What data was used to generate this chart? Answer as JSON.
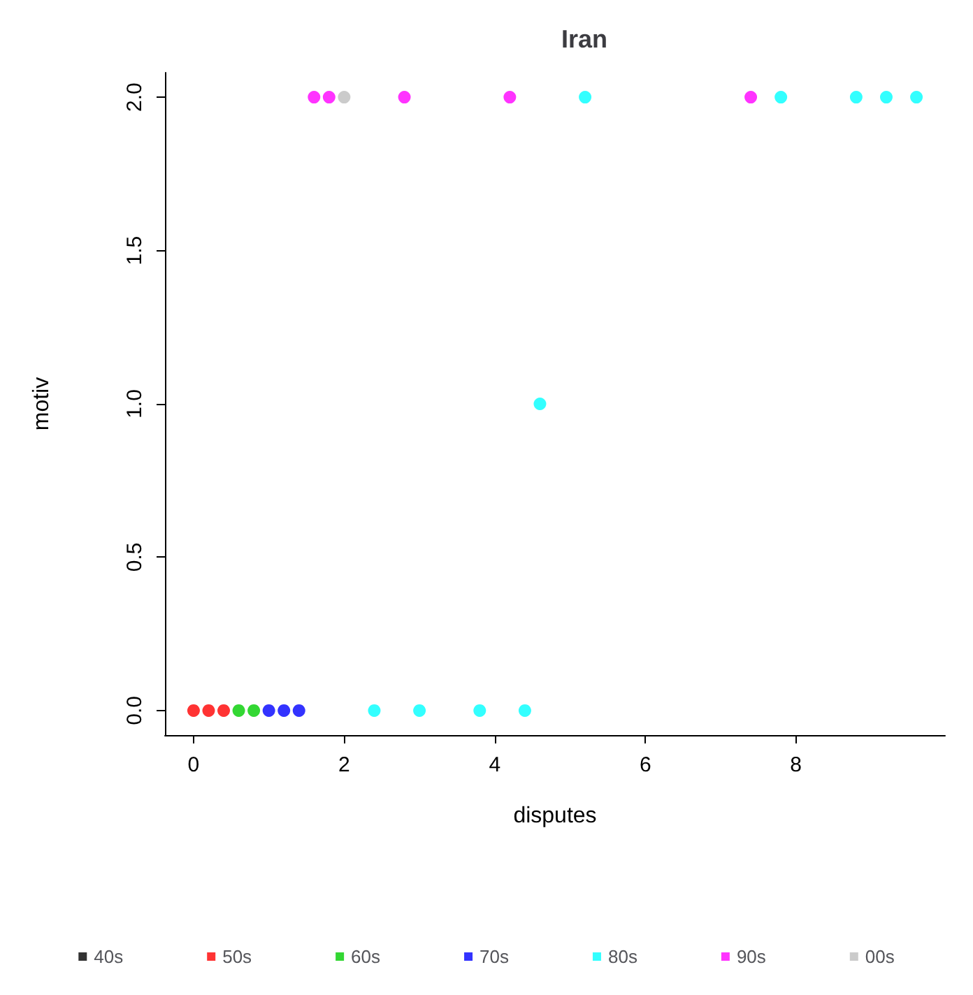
{
  "chart_data": {
    "type": "scatter",
    "title": "Iran",
    "xlabel": "disputes",
    "ylabel": "motiv",
    "xlim": [
      -0.38,
      9.98
    ],
    "xticks": [
      0,
      2,
      4,
      6,
      8
    ],
    "ylim": [
      -0.08,
      2.08
    ],
    "yticks": [
      {
        "value": 0,
        "label": "0.0"
      },
      0.5,
      {
        "value": 1,
        "label": "1.0"
      },
      1.5,
      {
        "value": 2,
        "label": "2.0"
      }
    ],
    "grid": false,
    "legend": "bottom",
    "marker": "circle",
    "series": [
      {
        "name": "40s",
        "color": "#000000"
      },
      {
        "name": "50s",
        "color": "#ff0000",
        "x": [
          0,
          0.2,
          0.4
        ],
        "values": [
          0,
          0,
          0
        ]
      },
      {
        "name": "60s",
        "color": "#00cd00",
        "x": [
          0.6,
          0.8
        ],
        "values": [
          0,
          0
        ]
      },
      {
        "name": "70s",
        "color": "#0000ff",
        "x": [
          1.0,
          1.2,
          1.4
        ],
        "values": [
          0,
          0,
          0
        ]
      },
      {
        "name": "80s",
        "color": "#00ffff",
        "x": [
          2.4,
          3.0,
          3.8,
          4.4,
          4.6,
          5.2,
          7.8,
          8.8,
          9.2,
          9.6
        ],
        "values": [
          0,
          0,
          0,
          0,
          1,
          2,
          2,
          2,
          2,
          2
        ]
      },
      {
        "name": "90s",
        "color": "#ff00ff",
        "x": [
          1.6,
          1.8,
          2.8,
          4.2,
          7.4
        ],
        "values": [
          2,
          2,
          2,
          2,
          2
        ]
      },
      {
        "name": "00s",
        "color": "#bebebe",
        "x": [
          2.0
        ],
        "values": [
          2
        ]
      }
    ]
  }
}
